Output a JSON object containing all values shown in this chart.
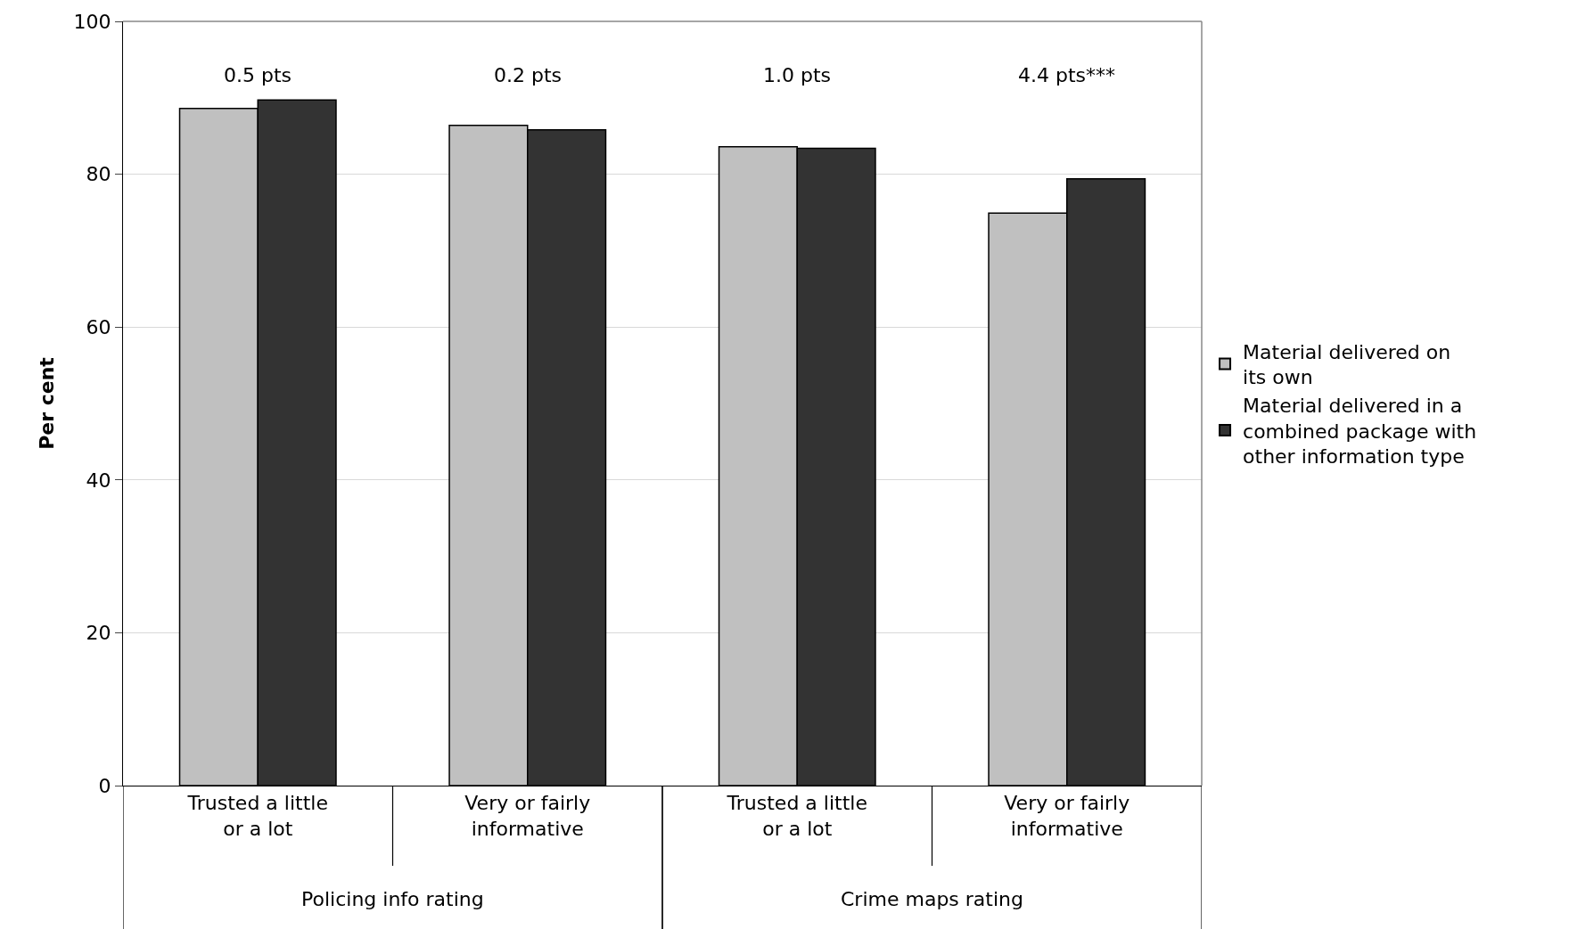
{
  "chart_data": {
    "type": "bar",
    "ylabel": "Per cent",
    "categories": [
      "Trusted a little or a lot",
      "Very or fairly informative",
      "Trusted a little or a lot",
      "Very or fairly informative"
    ],
    "series": [
      {
        "name": "Material delivered on its own",
        "color": "#c0c0c0",
        "values": [
          88.6,
          86.4,
          83.6,
          74.9
        ]
      },
      {
        "name": "Material delivered in a combined package with other information type",
        "color": "#333333",
        "values": [
          89.7,
          85.8,
          83.4,
          79.4
        ]
      }
    ],
    "annotations": [
      "0.5 pts",
      "0.2 pts",
      "1.0 pts",
      "4.4 pts***",
      "Policing info rating",
      "Crime maps rating"
    ],
    "ylim": [
      0,
      100
    ],
    "yticks": [
      0,
      20,
      40,
      60,
      80,
      100
    ],
    "grid": "y",
    "legend": "right"
  }
}
